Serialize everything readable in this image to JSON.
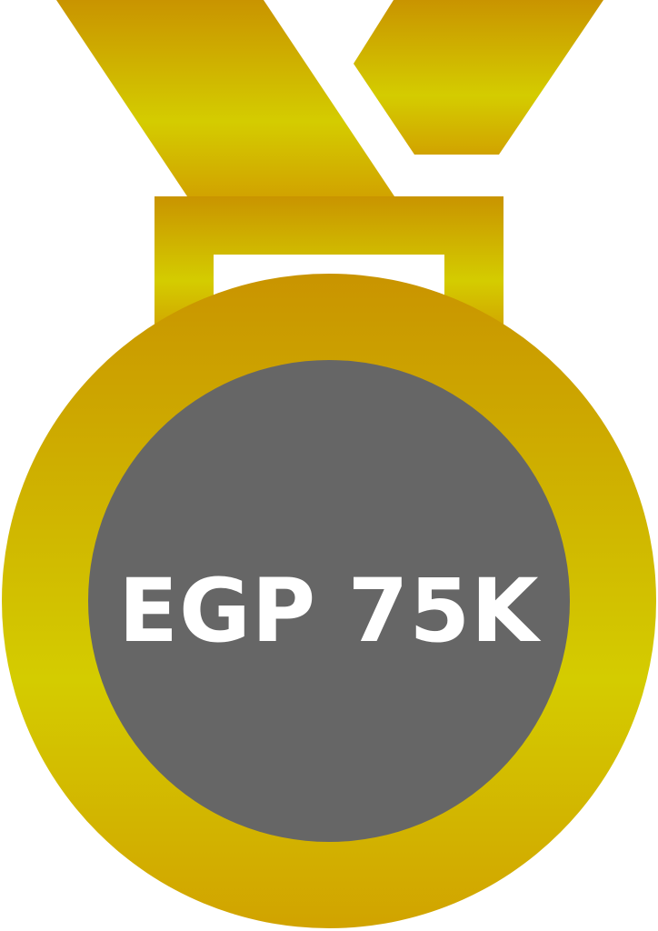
{
  "medal": {
    "label": "EGP 75K",
    "icon": "medal-icon",
    "colors": {
      "gold_top": "#C99400",
      "gold_mid": "#D4CC00",
      "gold_bottom": "#D1A300",
      "disc_fill": "#666666",
      "text": "#FFFFFF",
      "background": "#FFFFFF"
    }
  }
}
